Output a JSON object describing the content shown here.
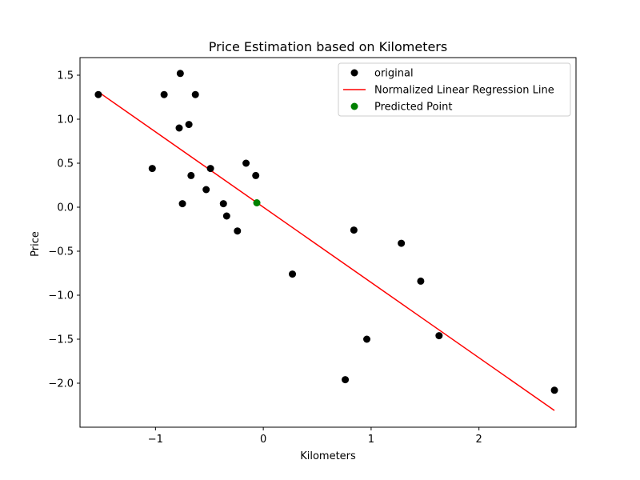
{
  "chart_data": {
    "type": "scatter",
    "title": "Price Estimation based on Kilometers",
    "xlabel": "Kilometers",
    "ylabel": "Price",
    "xlim": [
      -1.7,
      2.9
    ],
    "ylim": [
      -2.5,
      1.7
    ],
    "xticks": [
      -1,
      0,
      1,
      2
    ],
    "xtick_labels": [
      "−1",
      "0",
      "1",
      "2"
    ],
    "yticks": [
      1.5,
      1.0,
      0.5,
      0.0,
      -0.5,
      -1.0,
      -1.5,
      -2.0
    ],
    "ytick_labels": [
      "1.5",
      "1.0",
      "0.5",
      "0.0",
      "−0.5",
      "−1.0",
      "−1.5",
      "−2.0"
    ],
    "grid": false,
    "legend_position": "top-right",
    "series": [
      {
        "name": "original",
        "kind": "scatter",
        "color": "#000000",
        "points": [
          [
            -1.53,
            1.28
          ],
          [
            -1.03,
            0.44
          ],
          [
            -0.92,
            1.28
          ],
          [
            -0.77,
            1.52
          ],
          [
            -0.78,
            0.9
          ],
          [
            -0.69,
            0.94
          ],
          [
            -0.63,
            1.28
          ],
          [
            -0.67,
            0.36
          ],
          [
            -0.75,
            0.04
          ],
          [
            -0.53,
            0.2
          ],
          [
            -0.49,
            0.44
          ],
          [
            -0.37,
            0.04
          ],
          [
            -0.34,
            -0.1
          ],
          [
            -0.24,
            -0.27
          ],
          [
            -0.16,
            0.5
          ],
          [
            -0.07,
            0.36
          ],
          [
            0.27,
            -0.76
          ],
          [
            0.76,
            -1.96
          ],
          [
            0.84,
            -0.26
          ],
          [
            0.96,
            -1.5
          ],
          [
            1.28,
            -0.41
          ],
          [
            1.46,
            -0.84
          ],
          [
            1.63,
            -1.46
          ],
          [
            2.7,
            -2.08
          ]
        ]
      },
      {
        "name": "Normalized Linear Regression Line",
        "kind": "line",
        "color": "#ff0000",
        "points": [
          [
            -1.53,
            1.31
          ],
          [
            2.7,
            -2.31
          ]
        ]
      },
      {
        "name": "Predicted Point",
        "kind": "scatter",
        "color": "#008000",
        "points": [
          [
            -0.06,
            0.05
          ]
        ]
      }
    ]
  }
}
